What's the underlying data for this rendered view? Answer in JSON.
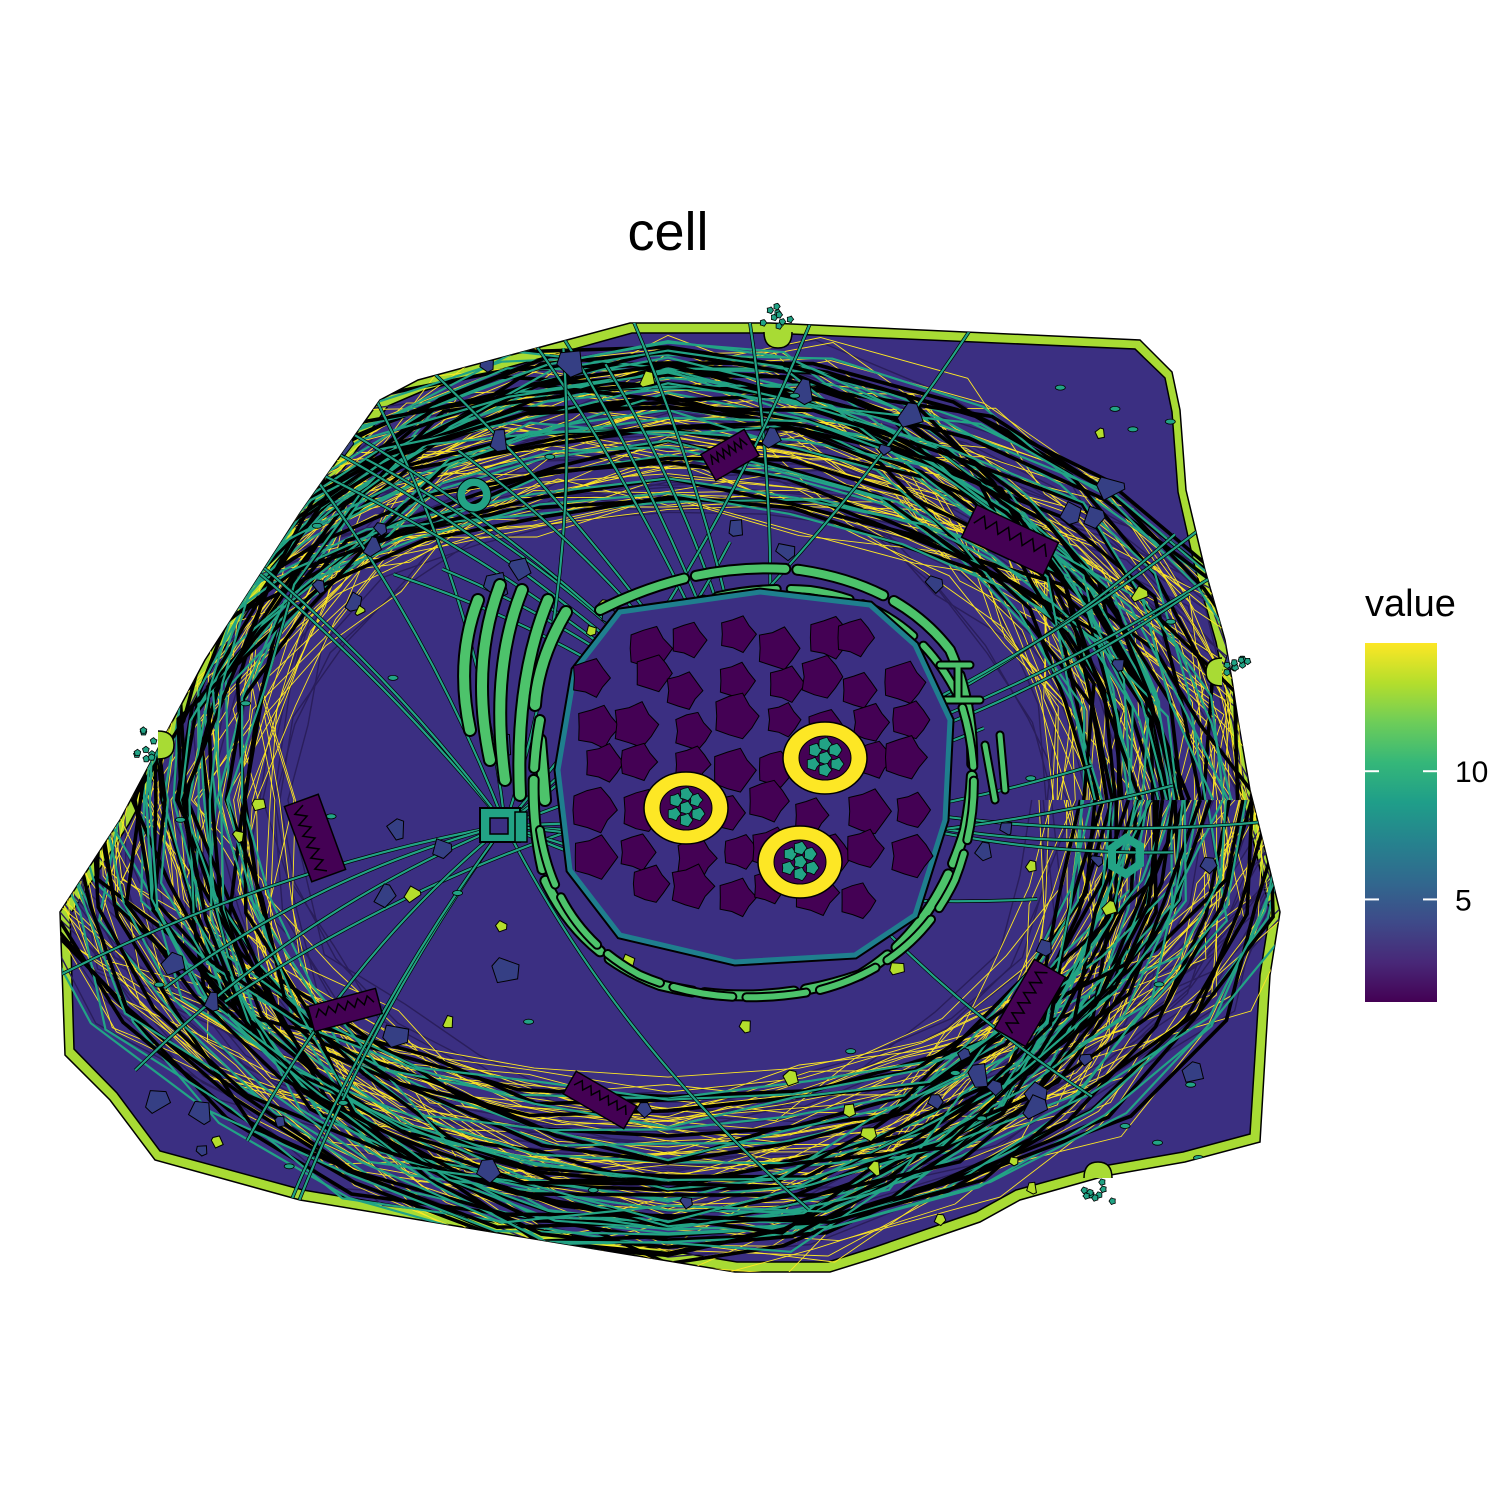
{
  "figure": {
    "title": "cell"
  },
  "legend": {
    "title": "value",
    "min": 1,
    "max": 15,
    "ticks": [
      {
        "value": 5,
        "label": "5"
      },
      {
        "value": 10,
        "label": "10"
      }
    ],
    "colors": [
      "#440154",
      "#482878",
      "#3E4A89",
      "#31688E",
      "#26828E",
      "#1F9E89",
      "#35B779",
      "#6DCD59",
      "#B4DE2C",
      "#FDE725"
    ]
  },
  "regions": {
    "cell_outline": {
      "value": 13.5,
      "color": "#A8DB34"
    },
    "cytoplasm": {
      "value": 2.0,
      "color": "#3B2F82"
    },
    "microfilaments": {
      "value": 15.0,
      "color": "#FDE725"
    },
    "microtubules": {
      "value": 8.0,
      "color": "#22A385"
    },
    "intermediate_filaments": {
      "value": 1.0,
      "color": "#2A1E5C"
    },
    "golgi": {
      "value": 11.0,
      "color": "#4DC36B"
    },
    "rough_er": {
      "value": 11.0,
      "color": "#4DC36B"
    },
    "nuclear_envelope": {
      "value": 7.5,
      "color": "#1F7F8E"
    },
    "nucleoplasm": {
      "value": 2.0,
      "color": "#3B2F82"
    },
    "chromatin": {
      "value": 1.0,
      "color": "#440154"
    },
    "nucleolus": {
      "value": 15.0,
      "color": "#FDE725"
    },
    "nucleolus_core": {
      "value": 8.0,
      "color": "#22A385"
    },
    "mitochondria": {
      "value": 1.0,
      "color": "#440154"
    },
    "vesicles": {
      "value": 4.0,
      "color": "#353F84"
    },
    "lysosomes": {
      "value": 14.0,
      "color": "#B4DE2C"
    },
    "centrosome": {
      "value": 8.0,
      "color": "#22A385"
    },
    "peroxisome": {
      "value": 8.0,
      "color": "#22A385"
    }
  }
}
